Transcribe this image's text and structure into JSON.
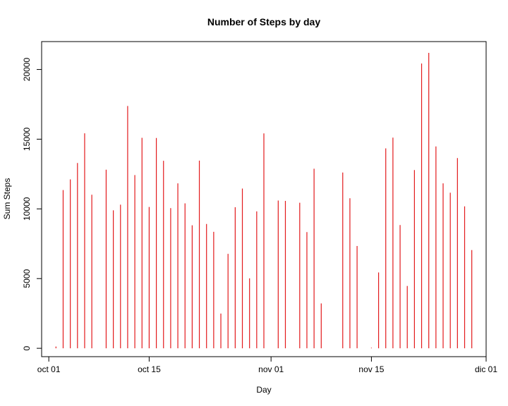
{
  "chart_data": {
    "type": "bar",
    "title": "Number of Steps by day",
    "xlabel": "Day",
    "ylabel": "Sum Steps",
    "bar_color": "#e31a1c",
    "xlim": [
      "2012-09-30",
      "2012-12-01"
    ],
    "ylim": [
      -600,
      22000
    ],
    "x_ticks": [
      {
        "date": "2012-10-01",
        "label": "oct 01"
      },
      {
        "date": "2012-10-15",
        "label": "oct 15"
      },
      {
        "date": "2012-11-01",
        "label": "nov 01"
      },
      {
        "date": "2012-11-15",
        "label": "nov 15"
      },
      {
        "date": "2012-12-01",
        "label": "dic 01"
      }
    ],
    "y_ticks": [
      0,
      5000,
      10000,
      15000,
      20000
    ],
    "x": [
      "2012-10-02",
      "2012-10-03",
      "2012-10-04",
      "2012-10-05",
      "2012-10-06",
      "2012-10-07",
      "2012-10-09",
      "2012-10-10",
      "2012-10-11",
      "2012-10-12",
      "2012-10-13",
      "2012-10-14",
      "2012-10-15",
      "2012-10-16",
      "2012-10-17",
      "2012-10-18",
      "2012-10-19",
      "2012-10-20",
      "2012-10-21",
      "2012-10-22",
      "2012-10-23",
      "2012-10-24",
      "2012-10-25",
      "2012-10-26",
      "2012-10-27",
      "2012-10-28",
      "2012-10-29",
      "2012-10-30",
      "2012-10-31",
      "2012-11-02",
      "2012-11-03",
      "2012-11-05",
      "2012-11-06",
      "2012-11-07",
      "2012-11-08",
      "2012-11-11",
      "2012-11-12",
      "2012-11-13",
      "2012-11-15",
      "2012-11-16",
      "2012-11-17",
      "2012-11-18",
      "2012-11-19",
      "2012-11-20",
      "2012-11-21",
      "2012-11-22",
      "2012-11-23",
      "2012-11-24",
      "2012-11-25",
      "2012-11-26",
      "2012-11-27",
      "2012-11-28",
      "2012-11-29"
    ],
    "values": [
      126,
      11352,
      12116,
      13294,
      15420,
      11015,
      12811,
      9900,
      10304,
      17382,
      12426,
      15098,
      10139,
      15084,
      13452,
      10056,
      11829,
      10395,
      8821,
      13460,
      8918,
      8355,
      2492,
      6778,
      10119,
      11458,
      5018,
      9819,
      15414,
      10600,
      10571,
      10439,
      8334,
      12883,
      3219,
      12608,
      10765,
      7336,
      41,
      5441,
      14339,
      15110,
      8841,
      4472,
      12787,
      20427,
      21194,
      14478,
      11834,
      11162,
      13646,
      10183,
      7047
    ]
  }
}
